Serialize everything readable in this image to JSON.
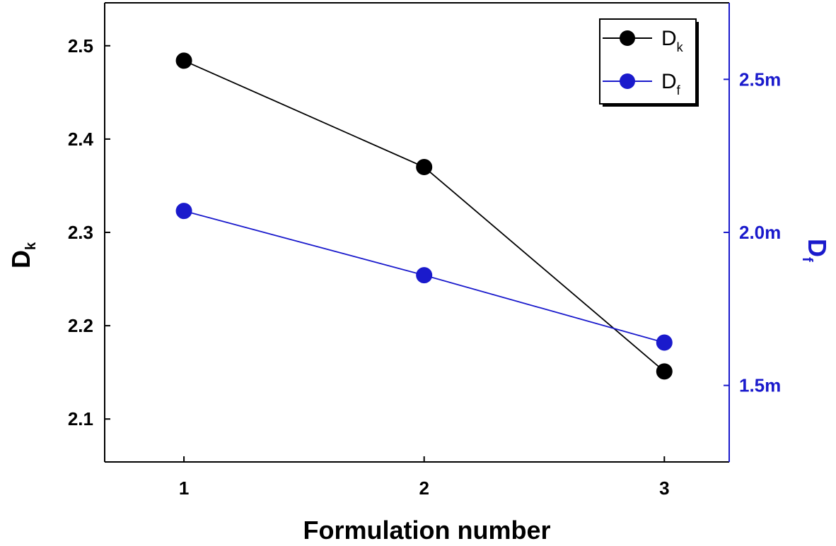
{
  "chart_data": {
    "type": "line",
    "xlabel": "Formulation number",
    "categories": [
      "1",
      "2",
      "3"
    ],
    "x": [
      1,
      2,
      3
    ],
    "xlim": [
      0.67,
      3.27
    ],
    "left_axis": {
      "label": "D",
      "label_sub": "k",
      "ylim": [
        2.054,
        2.546
      ],
      "ticks": [
        2.1,
        2.2,
        2.3,
        2.4,
        2.5
      ],
      "tick_labels": [
        "2.1",
        "2.2",
        "2.3",
        "2.4",
        "2.5"
      ],
      "color": "#000000"
    },
    "right_axis": {
      "label": "D",
      "label_sub": "f",
      "ylim": [
        0.00125,
        0.00275
      ],
      "ticks": [
        0.0015,
        0.002,
        0.0025
      ],
      "tick_labels": [
        "1.5m",
        "2.0m",
        "2.5m"
      ],
      "color": "#1a1acc"
    },
    "series": [
      {
        "name": "D",
        "name_sub": "k",
        "axis": "left",
        "color": "#000000",
        "values": [
          2.484,
          2.37,
          2.151
        ]
      },
      {
        "name": "D",
        "name_sub": "f",
        "axis": "right",
        "color": "#1a1acc",
        "values": [
          0.00207,
          0.00186,
          0.00164
        ]
      }
    ],
    "legend": {
      "position": "top-right"
    },
    "grid": false
  }
}
